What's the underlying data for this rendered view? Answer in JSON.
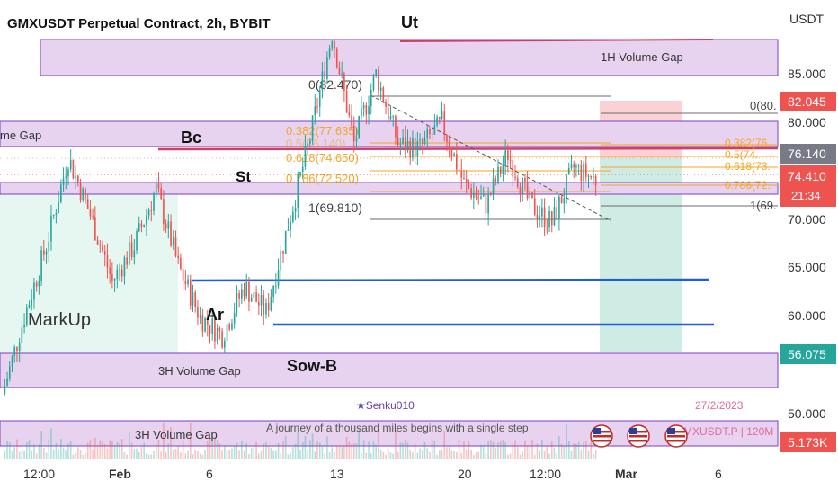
{
  "chart": {
    "title": "GMXUSDT Perpetual Contract, 2h, BYBIT",
    "currency": "USDT",
    "yticks": [
      "85.000",
      "80.000",
      "70.000",
      "65.000",
      "60.000",
      "50.000"
    ],
    "xticks": [
      "12:00",
      "Feb",
      "6",
      "13",
      "20",
      "12:00",
      "Mar",
      "6"
    ],
    "price_tags": {
      "sl": "82.045",
      "entry": "76.140",
      "last": "74.410",
      "countdown": "21:34",
      "tp": "56.075",
      "volume": "5.173K"
    },
    "fib_left": {
      "f0": "0(82.470)",
      "f382": "0.382(77.635)",
      "f5": "0.5(76.140)",
      "f618": "0.618(74.650)",
      "f786": "0.786(72.520)",
      "f1": "1(69.810)"
    },
    "fib_right": {
      "f0": "0(80.",
      "f382": "0.382(76.",
      "f5": "0.5(74.",
      "f618": "0.618(73.",
      "f786": "0.786(72.",
      "f1": "1(69."
    },
    "zones": {
      "top": "1H Volume Gap",
      "left": "me Gap",
      "mid": "3H Volume Gap",
      "bottom": "3H Volume Gap"
    },
    "labels": {
      "ut": "Ut",
      "bc": "Bc",
      "st": "St",
      "ar": "Ar",
      "sowb": "Sow-B",
      "markup": "MarkUp"
    },
    "author": "★Senku010",
    "date": "27/2/2023",
    "quote": "A journey of a thousand miles begins with a single step",
    "symbol": "MXUSDT.P | 120M",
    "colors": {
      "up": "#26a69a",
      "down": "#ef5350",
      "zone_fill": "#e7d3f0",
      "zone_border": "#7b3fbf",
      "fib_orange": "#f5a623",
      "blue_line": "#1f5fd6",
      "resistance": "#d43c64"
    }
  },
  "chart_data": {
    "type": "candlestick",
    "title": "GMXUSDT Perpetual Contract, 2h, BYBIT",
    "y_unit": "USDT",
    "ylim": [
      47,
      92
    ],
    "price_path": [
      {
        "date": "Jan 30",
        "price": 53.5
      },
      {
        "date": "Feb 1",
        "price": 61
      },
      {
        "date": "Feb 3",
        "price": 68
      },
      {
        "date": "Feb 4",
        "price": 76.6
      },
      {
        "date": "Feb 5",
        "price": 71
      },
      {
        "date": "Feb 6",
        "price": 64.5
      },
      {
        "date": "Feb 7",
        "price": 68
      },
      {
        "date": "Feb 8",
        "price": 73.5
      },
      {
        "date": "Feb 9",
        "price": 66
      },
      {
        "date": "Feb 10",
        "price": 61
      },
      {
        "date": "Feb 11",
        "price": 59.2
      },
      {
        "date": "Feb 12",
        "price": 64
      },
      {
        "date": "Feb 13",
        "price": 61.5
      },
      {
        "date": "Feb 14",
        "price": 70
      },
      {
        "date": "Feb 15",
        "price": 78.5
      },
      {
        "date": "Feb 16",
        "price": 88.8
      },
      {
        "date": "Feb 17",
        "price": 78
      },
      {
        "date": "Feb 18",
        "price": 84.8
      },
      {
        "date": "Feb 19",
        "price": 78
      },
      {
        "date": "Feb 20",
        "price": 77.5
      },
      {
        "date": "Feb 21",
        "price": 80
      },
      {
        "date": "Feb 22",
        "price": 74
      },
      {
        "date": "Feb 23",
        "price": 72
      },
      {
        "date": "Feb 24",
        "price": 77
      },
      {
        "date": "Feb 25",
        "price": 72
      },
      {
        "date": "Feb 26",
        "price": 70.2
      },
      {
        "date": "Feb 27",
        "price": 75.6
      },
      {
        "date": "Feb 27",
        "price": 74.41
      }
    ],
    "levels": {
      "last_price": 74.41,
      "entry": 76.14,
      "stop_loss": 82.045,
      "take_profit": 56.075,
      "support_1": 63.8,
      "support_2": 59,
      "resistance": 76.8
    },
    "fibonacci": [
      {
        "ratio": 0,
        "price": 82.47
      },
      {
        "ratio": 0.382,
        "price": 77.635
      },
      {
        "ratio": 0.5,
        "price": 76.14
      },
      {
        "ratio": 0.618,
        "price": 74.65
      },
      {
        "ratio": 0.786,
        "price": 72.52
      },
      {
        "ratio": 1,
        "price": 69.81
      }
    ],
    "volume_gaps": [
      {
        "label": "1H Volume Gap",
        "from": 85,
        "to": 88.8
      },
      {
        "label": "me Gap",
        "from": 76.7,
        "to": 79.4
      },
      {
        "label": "3H Volume Gap",
        "from": 52.2,
        "to": 55.8
      },
      {
        "label": "3H Volume Gap",
        "from": 46.5,
        "to": 49.2
      }
    ],
    "wyckoff_labels": [
      "Ut",
      "Bc",
      "St",
      "Ar",
      "Sow-B",
      "MarkUp"
    ],
    "last_volume": "5.173K"
  }
}
